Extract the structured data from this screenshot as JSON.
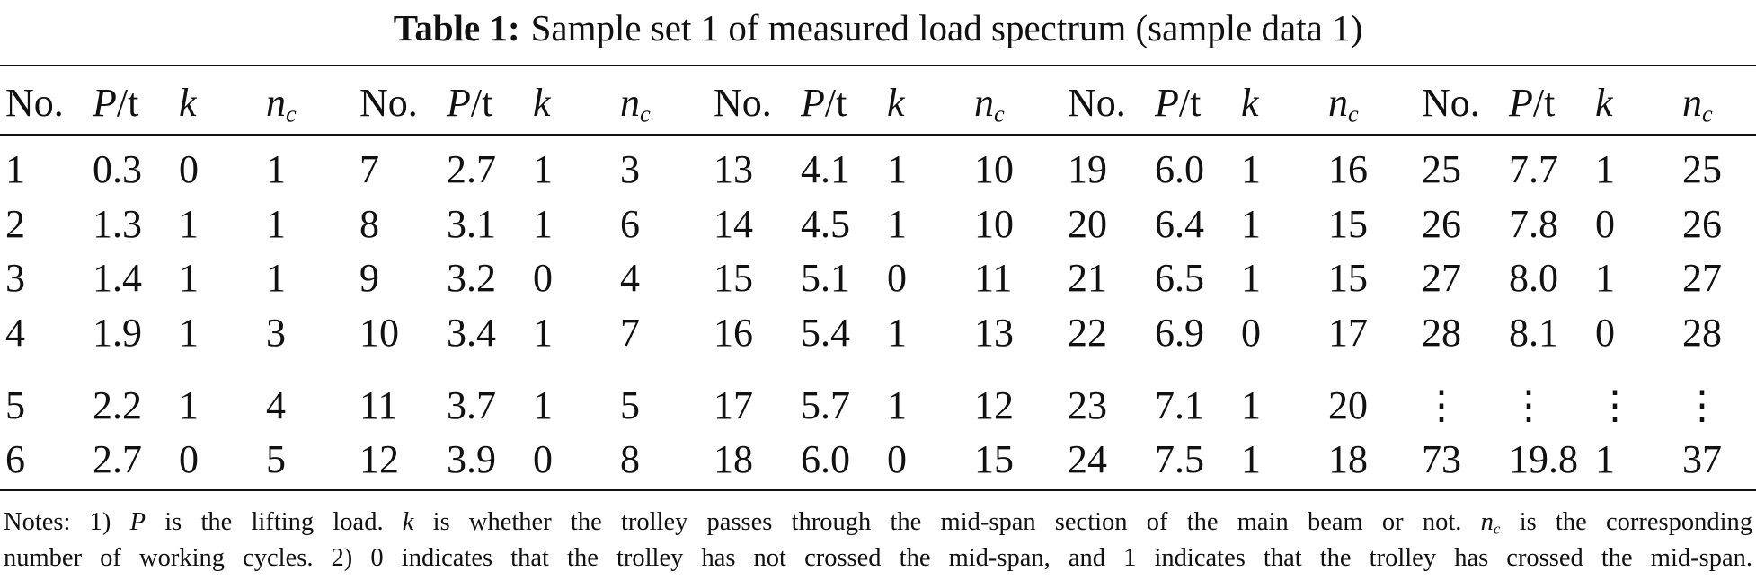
{
  "title": {
    "label": "Table 1:",
    "text": "Sample set 1 of measured load spectrum (sample data 1)"
  },
  "table": {
    "headers": [
      [
        {
          "text": "No."
        }
      ],
      [
        {
          "text": "P",
          "style": "italic"
        },
        {
          "text": "/t"
        }
      ],
      [
        {
          "text": "k",
          "style": "italic"
        }
      ],
      [
        {
          "text": "n",
          "style": "italic"
        },
        {
          "text": "c",
          "style": "subscript"
        }
      ]
    ],
    "rows": [
      [
        "1",
        "0.3",
        "0",
        "1",
        "7",
        "2.7",
        "1",
        "3",
        "13",
        "4.1",
        "1",
        "10",
        "19",
        "6.0",
        "1",
        "16",
        "25",
        "7.7",
        "1",
        "25"
      ],
      [
        "2",
        "1.3",
        "1",
        "1",
        "8",
        "3.1",
        "1",
        "6",
        "14",
        "4.5",
        "1",
        "10",
        "20",
        "6.4",
        "1",
        "15",
        "26",
        "7.8",
        "0",
        "26"
      ],
      [
        "3",
        "1.4",
        "1",
        "1",
        "9",
        "3.2",
        "0",
        "4",
        "15",
        "5.1",
        "0",
        "11",
        "21",
        "6.5",
        "1",
        "15",
        "27",
        "8.0",
        "1",
        "27"
      ],
      [
        "4",
        "1.9",
        "1",
        "3",
        "10",
        "3.4",
        "1",
        "7",
        "16",
        "5.4",
        "1",
        "13",
        "22",
        "6.9",
        "0",
        "17",
        "28",
        "8.1",
        "0",
        "28"
      ],
      [
        "5",
        "2.2",
        "1",
        "4",
        "11",
        "3.7",
        "1",
        "5",
        "17",
        "5.7",
        "1",
        "12",
        "23",
        "7.1",
        "1",
        "20",
        "⋮",
        "⋮",
        "⋮",
        "⋮"
      ],
      [
        "6",
        "2.7",
        "0",
        "5",
        "12",
        "3.9",
        "0",
        "8",
        "18",
        "6.0",
        "0",
        "15",
        "24",
        "7.5",
        "1",
        "18",
        "73",
        "19.8",
        "1",
        "37"
      ]
    ]
  },
  "notes": [
    [
      {
        "text": "Notes: 1) "
      },
      {
        "text": "P",
        "style": "italic"
      },
      {
        "text": " is the lifting load. "
      },
      {
        "text": "k",
        "style": "italic"
      },
      {
        "text": " is whether the trolley passes through the mid-span section of the main beam or not. "
      },
      {
        "text": "n",
        "style": "italic"
      },
      {
        "text": "c",
        "style": "subscript"
      },
      {
        "text": " is the corresponding"
      }
    ],
    [
      {
        "text": "number of working cycles. 2) 0 indicates that the trolley has not crossed the mid-span, and 1 indicates that the trolley has crossed the mid-span."
      }
    ]
  ]
}
